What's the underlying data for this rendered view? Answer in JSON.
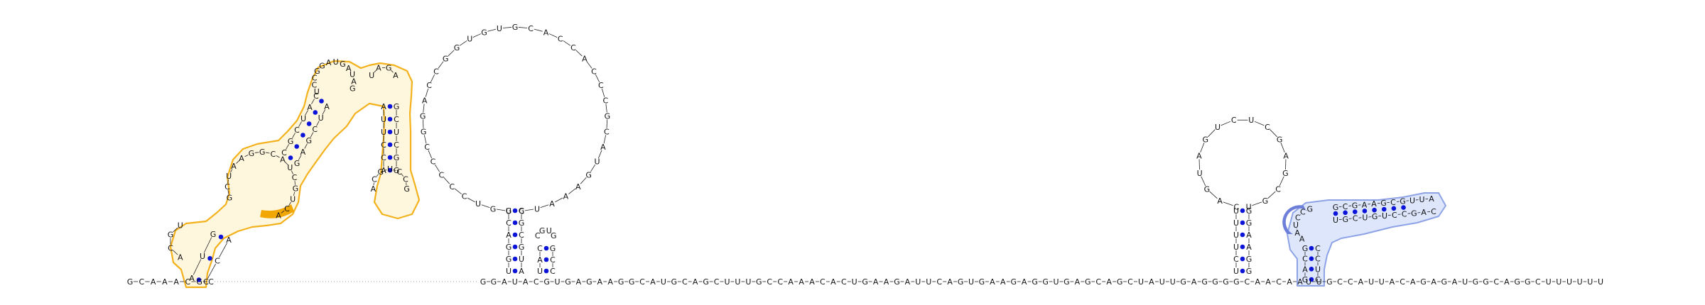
{
  "diagram": {
    "type": "RNA secondary structure",
    "colors": {
      "backbone": "#222222",
      "base_pair_dot": "#0b14d8",
      "highlight_orange_outline": "#f3b21c",
      "highlight_orange_fill": "#fff6de",
      "highlight_orange_solid": "#f2a600",
      "highlight_blue_outline": "#8ea3e6",
      "highlight_blue_fill": "#dde6fb",
      "highlight_blue_solid": "#6d7fd8"
    },
    "baseline": {
      "left_sequence": "GCAAACGC",
      "middle_sequence": "GGAUACGUGAGAAGGCAUGCAGCUUUGCCAAACACUGAAGAUUCAGUGAAGAGGUGAGCAGCUAUUGAGGGGCAACAA",
      "right_sequence": "UUGCCAUUACAGAGAUGGCAGGCUUUUUU"
    },
    "stems": {
      "stem_center_left": "UGGACG",
      "stem_center_right": "AUGCGG",
      "small_hairpin": "UACGUGCC",
      "stem_right_left": "UCUUUU",
      "stem_right_right": "GGAAGG",
      "blue_stem_left": "GACG",
      "blue_stem_right": "CUCC"
    },
    "loops": {
      "big_loop": "UGUCCCCCGGACCGGUGUGCACCACCCGCAUGAAAUC",
      "hairpin_right": "CAGUAGUCUCGAGCGU",
      "orange_top_loop": "UCCGGAUGAUAG",
      "orange_loop_a": "GCUAAGGCAUCGUCA",
      "orange_loop_b": "ACGUCCG",
      "blue_arm_upper": "GCGAAGCGUUA",
      "blue_arm_lower": "UGCUGUCCGAC",
      "blue_junction": "AAUCCG"
    }
  }
}
